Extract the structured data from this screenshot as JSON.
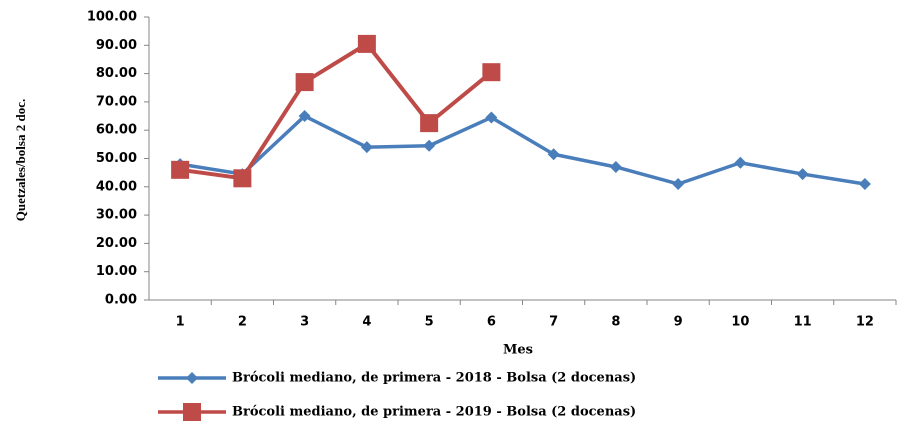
{
  "chart_data": {
    "type": "line",
    "x_label": "Mes",
    "y_label": "Quetzales/bolsa 2 doc.",
    "categories": [
      "1",
      "2",
      "3",
      "4",
      "5",
      "6",
      "7",
      "8",
      "9",
      "10",
      "11",
      "12"
    ],
    "series": [
      {
        "name": "Brócoli mediano, de primera - 2018 - Bolsa (2 docenas)",
        "color": "#4a7ebb",
        "marker": "diamond",
        "values": [
          48,
          44.5,
          65,
          54,
          54.5,
          64.5,
          51.5,
          47,
          41,
          48.5,
          44.5,
          41
        ]
      },
      {
        "name": "Brócoli mediano, de primera - 2019 - Bolsa (2 docenas)",
        "color": "#be4b48",
        "marker": "square",
        "values": [
          46,
          43,
          77,
          90.5,
          62.5,
          80.5,
          null,
          null,
          null,
          null,
          null,
          null
        ]
      }
    ],
    "ylim": [
      0,
      100
    ],
    "yticks": [
      {
        "value": 0,
        "label": "0.00"
      },
      {
        "value": 10,
        "label": "10.00"
      },
      {
        "value": 20,
        "label": "20.00"
      },
      {
        "value": 30,
        "label": "30.00"
      },
      {
        "value": 40,
        "label": "40.00"
      },
      {
        "value": 50,
        "label": "50.00"
      },
      {
        "value": 60,
        "label": "60.00"
      },
      {
        "value": 70,
        "label": "70.00"
      },
      {
        "value": 80,
        "label": "80.00"
      },
      {
        "value": 90,
        "label": "90.00"
      },
      {
        "value": 100,
        "label": "100.00"
      }
    ],
    "grid": false,
    "legend": "bottom"
  }
}
